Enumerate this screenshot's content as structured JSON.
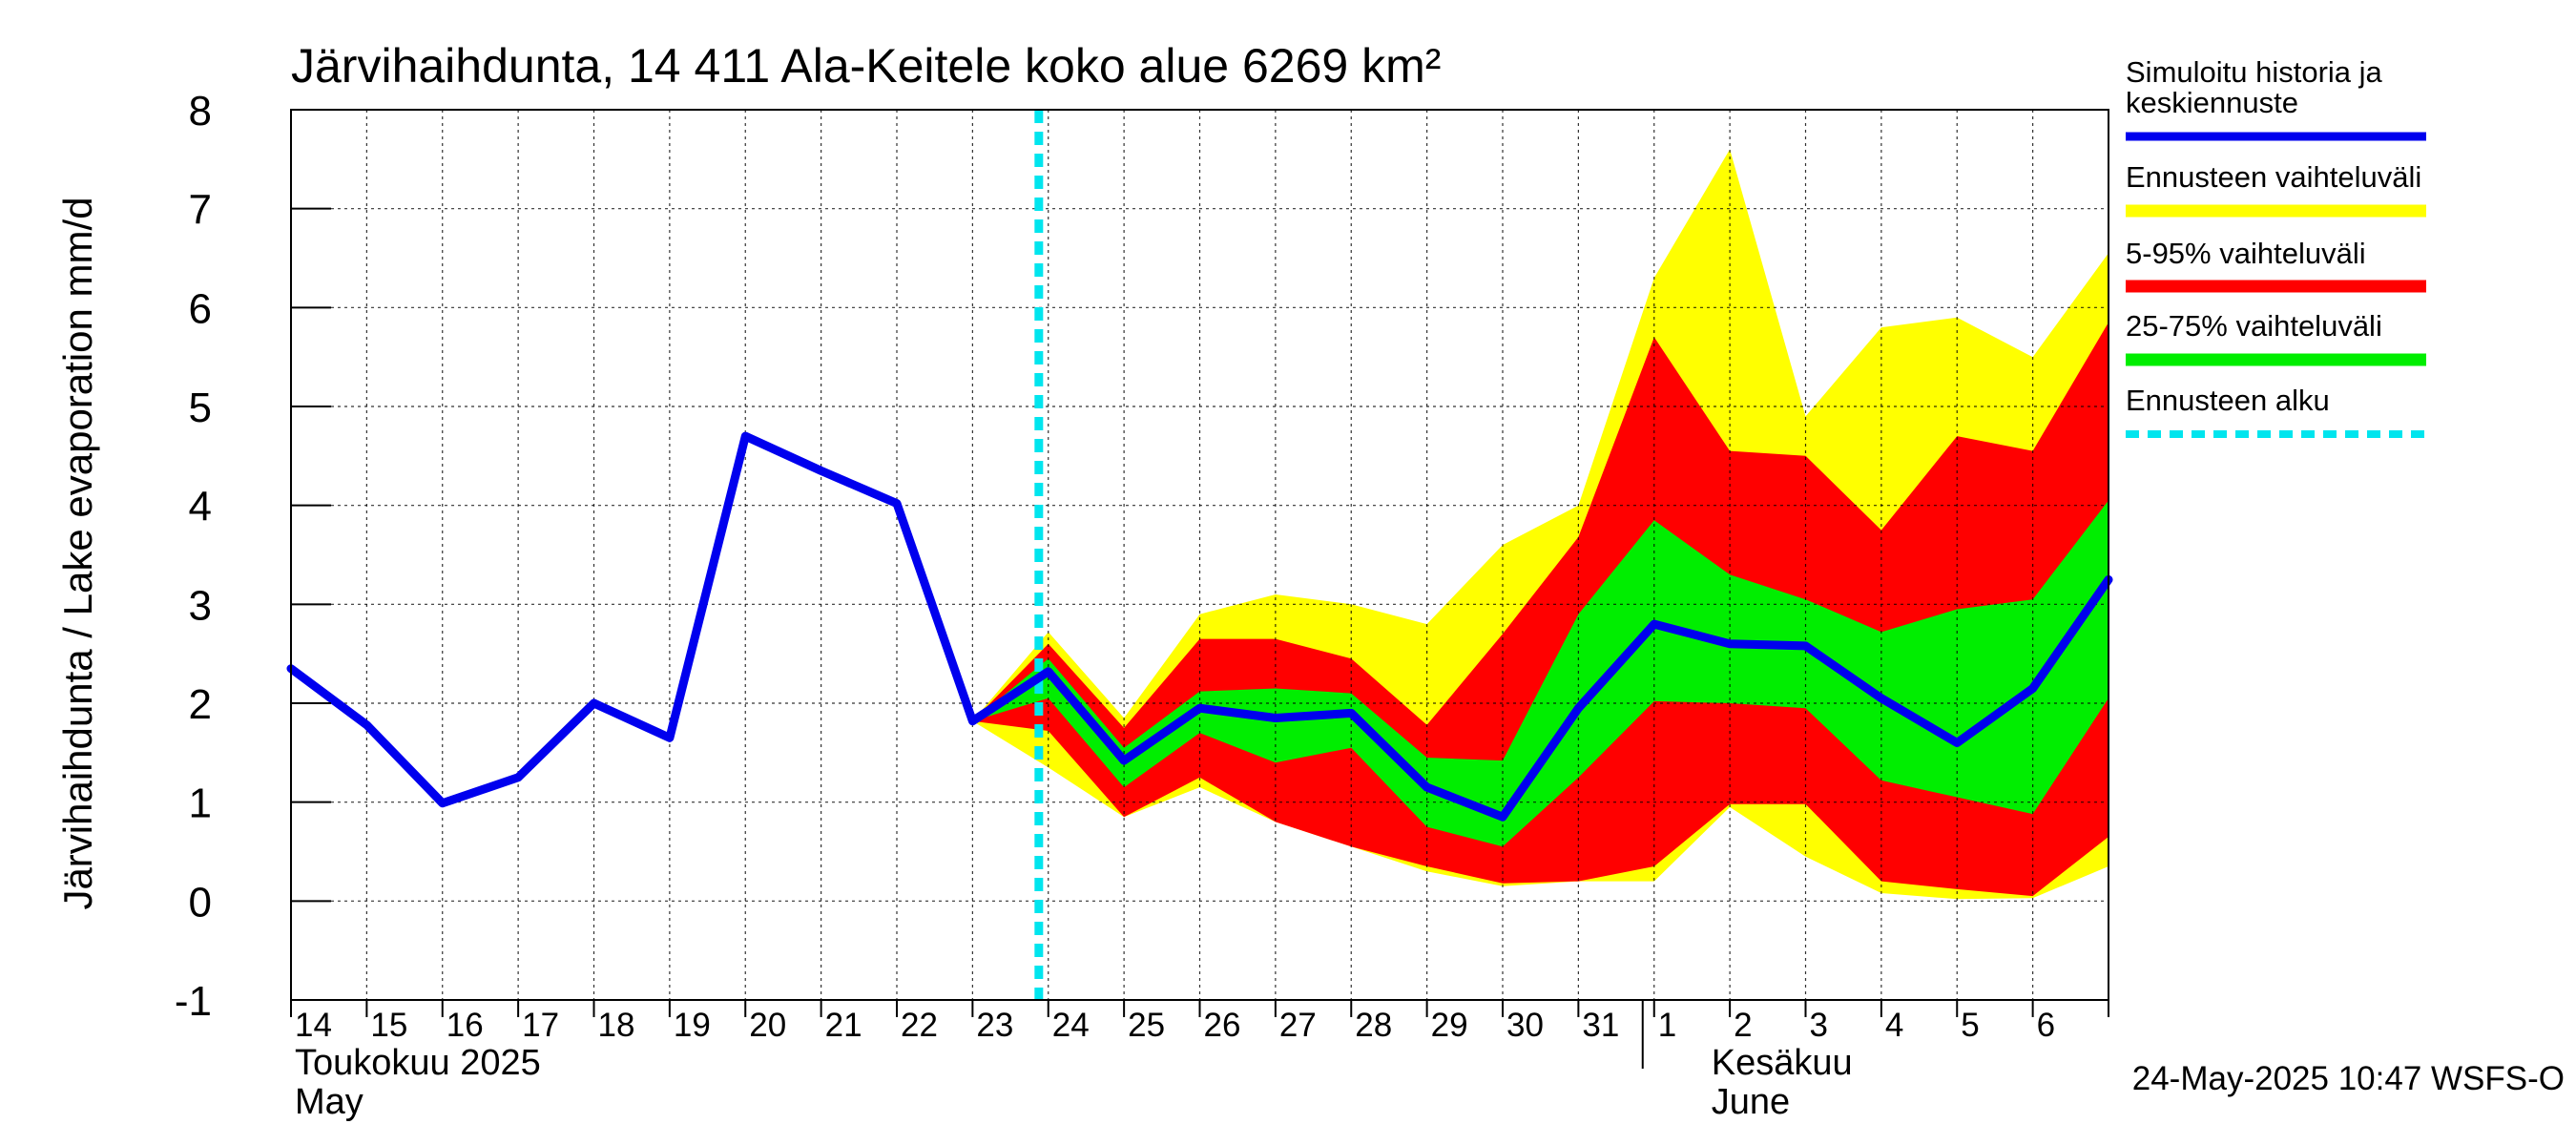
{
  "chart_data": {
    "type": "area",
    "title": "Järvihaihdunta, 14 411 Ala-Keitele koko alue 6269 km²",
    "ylabel": "Järvihaihdunta / Lake evaporation   mm/d",
    "ylim": [
      -1,
      8
    ],
    "yticks": [
      -1,
      0,
      1,
      2,
      3,
      4,
      5,
      6,
      7,
      8
    ],
    "grid": true,
    "legend_position": "right",
    "x_day_labels": [
      "14",
      "15",
      "16",
      "17",
      "18",
      "19",
      "20",
      "21",
      "22",
      "23",
      "24",
      "25",
      "26",
      "27",
      "28",
      "29",
      "30",
      "31",
      "1",
      "2",
      "3",
      "4",
      "5",
      "6"
    ],
    "month_labels": [
      {
        "line1": "Toukokuu  2025",
        "line2": "May"
      },
      {
        "line1": "Kesäkuu",
        "line2": "June"
      }
    ],
    "forecast_start": "2025-05-23 21:00",
    "timestamp": "24-May-2025 10:47 WSFS-O",
    "colors": {
      "history": "#0000ee",
      "range": "#ffff00",
      "p5_95": "#ff0000",
      "p25_75": "#00ee00",
      "forecast_start": "#00e5ee"
    },
    "legend": [
      {
        "label": "Simuloitu historia ja",
        "label2": "keskiennuste",
        "color": "#0000ee",
        "style": "solid"
      },
      {
        "label": "Ennusteen vaihteluväli",
        "color": "#ffff00",
        "style": "solid"
      },
      {
        "label": "5-95% vaihteluväli",
        "color": "#ff0000",
        "style": "solid"
      },
      {
        "label": "25-75% vaihteluväli",
        "color": "#00ee00",
        "style": "solid"
      },
      {
        "label": "Ennusteen alku",
        "color": "#00e5ee",
        "style": "dashed"
      }
    ],
    "history": {
      "x": [
        "2025-05-14",
        "2025-05-15",
        "2025-05-16",
        "2025-05-17",
        "2025-05-18",
        "2025-05-19",
        "2025-05-20",
        "2025-05-21",
        "2025-05-22",
        "2025-05-23"
      ],
      "y": [
        2.35,
        1.78,
        0.99,
        1.25,
        2.0,
        1.65,
        4.7,
        4.35,
        4.02,
        1.82
      ]
    },
    "forecast": {
      "x": [
        "2025-05-23",
        "2025-05-24",
        "2025-05-25",
        "2025-05-26",
        "2025-05-27",
        "2025-05-28",
        "2025-05-29",
        "2025-05-30",
        "2025-05-31",
        "2025-06-01",
        "2025-06-02",
        "2025-06-03",
        "2025-06-04",
        "2025-06-05",
        "2025-06-06",
        "2025-06-07"
      ],
      "median": [
        1.82,
        2.32,
        1.42,
        1.95,
        1.85,
        1.9,
        1.15,
        0.85,
        1.95,
        2.8,
        2.6,
        2.58,
        2.05,
        1.6,
        2.15,
        3.25
      ],
      "min": [
        1.82,
        1.35,
        0.85,
        1.15,
        0.8,
        0.55,
        0.3,
        0.15,
        0.2,
        0.2,
        0.95,
        0.45,
        0.08,
        0.02,
        0.03,
        0.35
      ],
      "max": [
        1.82,
        2.72,
        1.85,
        2.9,
        3.1,
        3.0,
        2.8,
        3.6,
        4.0,
        6.3,
        7.6,
        4.9,
        5.8,
        5.9,
        5.5,
        6.55
      ],
      "p5": [
        1.82,
        1.72,
        0.85,
        1.25,
        0.8,
        0.55,
        0.35,
        0.18,
        0.2,
        0.35,
        0.98,
        0.98,
        0.2,
        0.12,
        0.05,
        0.65
      ],
      "p95": [
        1.82,
        2.6,
        1.75,
        2.65,
        2.65,
        2.45,
        1.78,
        2.7,
        3.68,
        5.7,
        4.55,
        4.5,
        3.75,
        4.7,
        4.55,
        5.85
      ],
      "p25": [
        1.82,
        2.05,
        1.15,
        1.7,
        1.4,
        1.55,
        0.75,
        0.55,
        1.25,
        2.02,
        2.0,
        1.95,
        1.22,
        1.05,
        0.88,
        2.05
      ],
      "p75": [
        1.82,
        2.45,
        1.55,
        2.12,
        2.15,
        2.1,
        1.45,
        1.42,
        2.9,
        3.85,
        3.3,
        3.05,
        2.72,
        2.95,
        3.05,
        4.05
      ]
    }
  }
}
